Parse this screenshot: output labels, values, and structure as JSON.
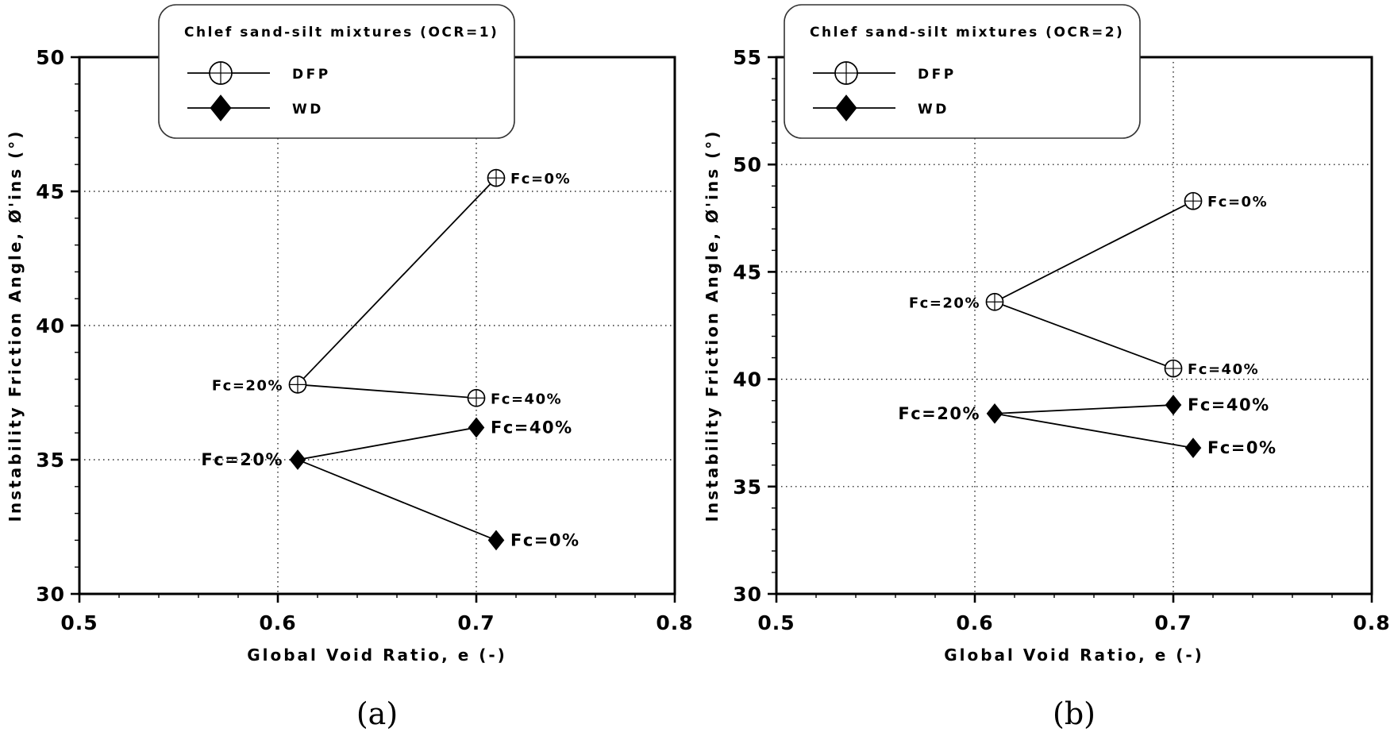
{
  "figure": {
    "background": "#ffffff",
    "ink": "#000000",
    "grid_color": "#000000"
  },
  "chart_data": [
    {
      "type": "line",
      "caption": "(a)",
      "legend": {
        "title": "Chlef sand-silt mixtures (OCR=1)",
        "position": "top-left-overlap",
        "x": 200,
        "entries": [
          {
            "name": "DFP",
            "marker": "circle-plus"
          },
          {
            "name": "WD",
            "marker": "diamond"
          }
        ]
      },
      "xlabel": "Global Void Ratio, e (-)",
      "ylabel": "Instability Friction Angle, Ø'ins (°)",
      "xlim": [
        0.5,
        0.8
      ],
      "ylim": [
        30,
        50
      ],
      "xticks": [
        0.5,
        0.6,
        0.7,
        0.8
      ],
      "xtick_labels": [
        "0.5",
        "0.6",
        "0.7",
        "0.8"
      ],
      "yticks": [
        30,
        35,
        40,
        45,
        50
      ],
      "ytick_labels": [
        "30",
        "35",
        "40",
        "45",
        "50"
      ],
      "x_minor_step": 0.02,
      "y_minor_step": 1,
      "x_grid": [
        0.6,
        0.7
      ],
      "y_grid": [
        35,
        40,
        45
      ],
      "grid_style": "dotted",
      "series": [
        {
          "name": "DFP",
          "marker": "circle-plus",
          "label_size": 18,
          "points": [
            {
              "x": 0.61,
              "y": 37.8,
              "label": "Fc=20%",
              "side": "left"
            },
            {
              "x": 0.7,
              "y": 37.3,
              "label": "Fc=40%",
              "side": "right"
            },
            {
              "x": 0.71,
              "y": 45.5,
              "label": "Fc=0%",
              "side": "right"
            }
          ],
          "segments": [
            [
              0,
              2
            ],
            [
              0,
              1
            ]
          ]
        },
        {
          "name": "WD",
          "marker": "diamond",
          "label_size": 21,
          "points": [
            {
              "x": 0.61,
              "y": 35.0,
              "label": "Fc=20%",
              "side": "left"
            },
            {
              "x": 0.7,
              "y": 36.2,
              "label": "Fc=40%",
              "side": "right"
            },
            {
              "x": 0.71,
              "y": 32.0,
              "label": "Fc=0%",
              "side": "right"
            }
          ],
          "segments": [
            [
              0,
              1
            ],
            [
              0,
              2
            ]
          ]
        }
      ]
    },
    {
      "type": "line",
      "caption": "(b)",
      "legend": {
        "title": "Chlef sand-silt mixtures (OCR=2)",
        "position": "top-left-overlap",
        "x": 110,
        "entries": [
          {
            "name": "DFP",
            "marker": "circle-plus"
          },
          {
            "name": "WD",
            "marker": "diamond"
          }
        ]
      },
      "xlabel": "Global Void Ratio, e (-)",
      "ylabel": "Instability Friction Angle, Ø'ins (°)",
      "xlim": [
        0.5,
        0.8
      ],
      "ylim": [
        30,
        55
      ],
      "xticks": [
        0.5,
        0.6,
        0.7,
        0.8
      ],
      "xtick_labels": [
        "0.5",
        "0.6",
        "0.7",
        "0.8"
      ],
      "yticks": [
        30,
        35,
        40,
        45,
        50,
        55
      ],
      "ytick_labels": [
        "30",
        "35",
        "40",
        "45",
        "50",
        "55"
      ],
      "x_minor_step": 0.02,
      "y_minor_step": 1,
      "x_grid": [
        0.6,
        0.7
      ],
      "y_grid": [
        35,
        40,
        45,
        50
      ],
      "grid_style": "dotted",
      "series": [
        {
          "name": "DFP",
          "marker": "circle-plus",
          "label_size": 18,
          "points": [
            {
              "x": 0.61,
              "y": 43.6,
              "label": "Fc=20%",
              "side": "left"
            },
            {
              "x": 0.7,
              "y": 40.5,
              "label": "Fc=40%",
              "side": "right"
            },
            {
              "x": 0.71,
              "y": 48.3,
              "label": "Fc=0%",
              "side": "right"
            }
          ],
          "segments": [
            [
              0,
              2
            ],
            [
              0,
              1
            ]
          ]
        },
        {
          "name": "WD",
          "marker": "diamond",
          "label_size": 21,
          "points": [
            {
              "x": 0.61,
              "y": 38.4,
              "label": "Fc=20%",
              "side": "left"
            },
            {
              "x": 0.7,
              "y": 38.8,
              "label": "Fc=40%",
              "side": "right"
            },
            {
              "x": 0.71,
              "y": 36.8,
              "label": "Fc=0%",
              "side": "right"
            }
          ],
          "segments": [
            [
              0,
              1
            ],
            [
              0,
              2
            ]
          ]
        }
      ]
    }
  ]
}
